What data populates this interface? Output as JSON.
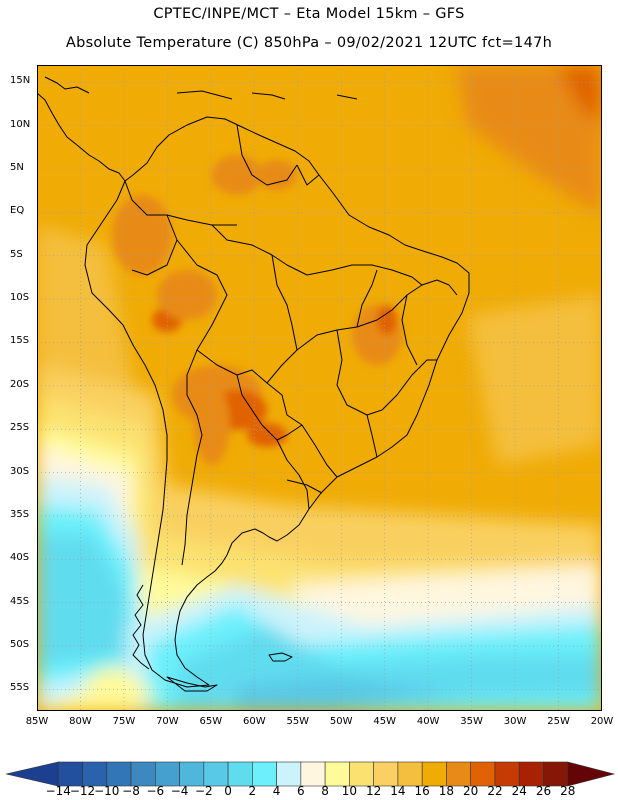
{
  "header": {
    "title_line1": "CPTEC/INPE/MCT –  Eta Model 15km – GFS",
    "title_line2": "Absolute Temperature (C) 850hPa – 09/02/2021 12UTC fct=147h"
  },
  "map": {
    "lat_labels": [
      "15N",
      "10N",
      "5N",
      "EQ",
      "5S",
      "10S",
      "15S",
      "20S",
      "25S",
      "30S",
      "35S",
      "40S",
      "45S",
      "50S",
      "55S"
    ],
    "lon_labels": [
      "85W",
      "80W",
      "75W",
      "70W",
      "65W",
      "60W",
      "55W",
      "50W",
      "45W",
      "40W",
      "35W",
      "30W",
      "25W",
      "20W"
    ],
    "lon_range": [
      -85,
      -20
    ],
    "lat_range": [
      -57.5,
      17
    ]
  },
  "colorbar": {
    "tick_labels": [
      "-14",
      "-12",
      "-10",
      "-8",
      "-6",
      "-4",
      "-2",
      "0",
      "2",
      "4",
      "6",
      "8",
      "10",
      "12",
      "14",
      "16",
      "18",
      "20",
      "22",
      "24",
      "26",
      "28"
    ],
    "colors": [
      "#1d3f8f",
      "#22509f",
      "#2b62ae",
      "#3376b8",
      "#3c89c2",
      "#46a0cf",
      "#4fb6dc",
      "#58c9e6",
      "#60dcef",
      "#6cf0fb",
      "#ccf3fb",
      "#fff6df",
      "#fffa9a",
      "#fbe270",
      "#f9d061",
      "#f4bf3c",
      "#f0ab04",
      "#e88b16",
      "#e06205",
      "#c63b04",
      "#a82103",
      "#861606",
      "#650406"
    ]
  }
}
